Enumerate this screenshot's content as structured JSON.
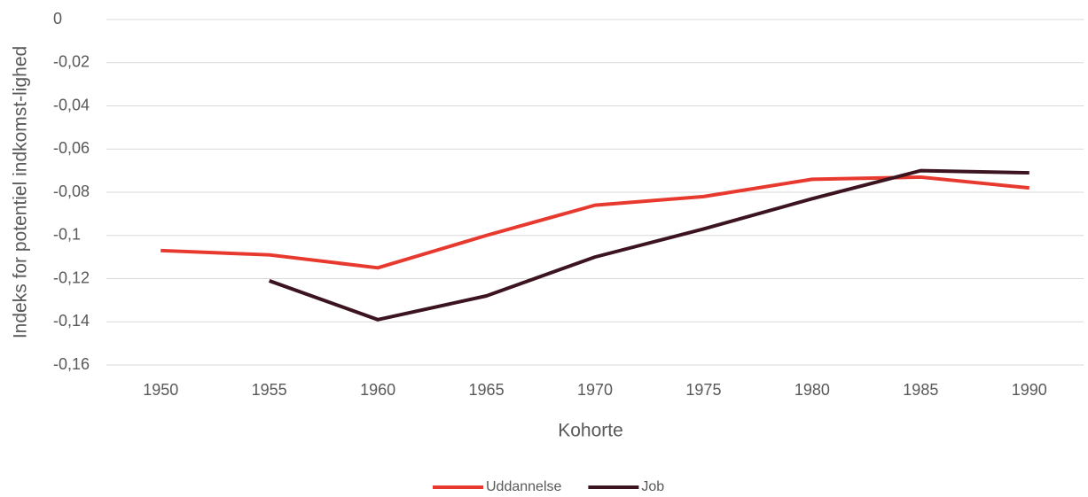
{
  "chart_data": {
    "type": "line",
    "x_label": "Kohorte",
    "y_label": "Indeks for potentiel indkomst-lighed",
    "categories": [
      "1950",
      "1955",
      "1960",
      "1965",
      "1970",
      "1975",
      "1980",
      "1985",
      "1990"
    ],
    "series": [
      {
        "name": "Uddannelse",
        "color": "#e8392f",
        "values": [
          -0.107,
          -0.109,
          -0.115,
          -0.1,
          -0.086,
          -0.082,
          -0.074,
          -0.073,
          -0.078
        ]
      },
      {
        "name": "Job",
        "color": "#3b1420",
        "values": [
          null,
          -0.121,
          -0.139,
          -0.128,
          -0.11,
          -0.097,
          -0.083,
          -0.07,
          -0.071
        ]
      }
    ],
    "ylim": [
      -0.16,
      0
    ],
    "yticks": [
      0,
      {
        "value": -0.02,
        "label": "-0,02"
      },
      {
        "value": -0.04,
        "label": "-0,04"
      },
      {
        "value": -0.06,
        "label": "-0,06"
      },
      {
        "value": -0.08,
        "label": "-0,08"
      },
      {
        "value": -0.1,
        "label": "-0,1"
      },
      {
        "value": -0.12,
        "label": "-0,12"
      },
      {
        "value": -0.14,
        "label": "-0,14"
      },
      {
        "value": -0.16,
        "label": "-0,16"
      }
    ],
    "grid": true,
    "legend": "bottom"
  }
}
